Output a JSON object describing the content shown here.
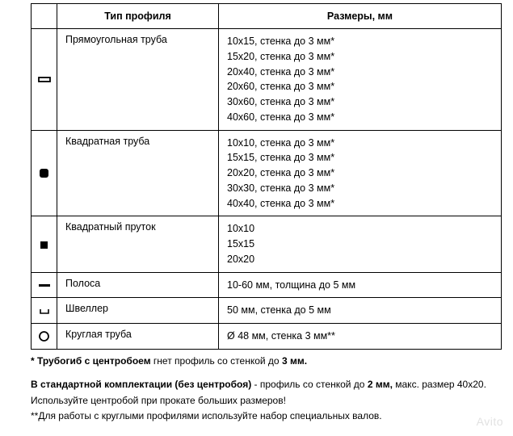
{
  "table": {
    "headers": {
      "icon": "",
      "profile": "Тип профиля",
      "sizes": "Размеры, мм"
    },
    "rows": [
      {
        "icon": "rect-tube",
        "name": "Прямоугольная труба",
        "sizes": [
          "10х15, стенка до 3 мм*",
          "15х20, стенка до 3 мм*",
          "20х40, стенка до 3 мм*",
          "20х60, стенка до 3 мм*",
          "30х60, стенка до 3 мм*",
          "40х60, стенка до 3 мм*"
        ]
      },
      {
        "icon": "square-tube",
        "name": "Квадратная труба",
        "sizes": [
          "10х10, стенка до 3 мм*",
          "15х15, стенка до 3 мм*",
          "20х20, стенка до 3 мм*",
          "30х30, стенка до 3 мм*",
          "40х40, стенка до 3 мм*"
        ]
      },
      {
        "icon": "square-bar",
        "name": "Квадратный пруток",
        "sizes": [
          "10х10",
          "15х15",
          "20х20"
        ]
      },
      {
        "icon": "strip",
        "name": "Полоса",
        "sizes": [
          "10-60 мм, толщина до 5 мм"
        ]
      },
      {
        "icon": "channel",
        "name": "Швеллер",
        "sizes": [
          "50 мм, стенка до 5 мм"
        ]
      },
      {
        "icon": "round-tube",
        "name": "Круглая труба",
        "sizes": [
          "Ø 48 мм, стенка 3 мм**"
        ]
      }
    ]
  },
  "footnotes": {
    "l1_a": "* Трубогиб с центробоем",
    "l1_b": " гнет профиль со стенкой до ",
    "l1_c": "3 мм.",
    "l2_a": "В стандартной комплектации (без центробоя)",
    "l2_b": " - профиль со стенкой до ",
    "l2_c": "2 мм,",
    "l2_d": " макс. размер 40х20.",
    "l3": "Используйте центробой при прокате больших размеров!",
    "l4": "**Для работы с круглыми профилями используйте набор специальных валов."
  },
  "watermark": "Avito",
  "icons": {
    "rect-tube": {
      "type": "rect-outline",
      "w": 14,
      "h": 5,
      "stroke": "#000",
      "sw": 1.8
    },
    "square-tube": {
      "type": "round-square-fill",
      "s": 11,
      "r": 3,
      "fill": "#000"
    },
    "square-bar": {
      "type": "square-fill",
      "s": 9,
      "fill": "#000"
    },
    "strip": {
      "type": "rect-fill",
      "w": 14,
      "h": 3,
      "fill": "#000"
    },
    "channel": {
      "type": "channel",
      "w": 10,
      "h": 5,
      "sw": 1.6,
      "stroke": "#000"
    },
    "round-tube": {
      "type": "circle-outline",
      "d": 11,
      "sw": 1.8,
      "stroke": "#000"
    }
  },
  "style": {
    "border_color": "#000000",
    "bg": "#ffffff",
    "text": "#000000",
    "font_size_body": 12.5,
    "font_size_foot": 12,
    "watermark_color": "#c9c9c9"
  }
}
